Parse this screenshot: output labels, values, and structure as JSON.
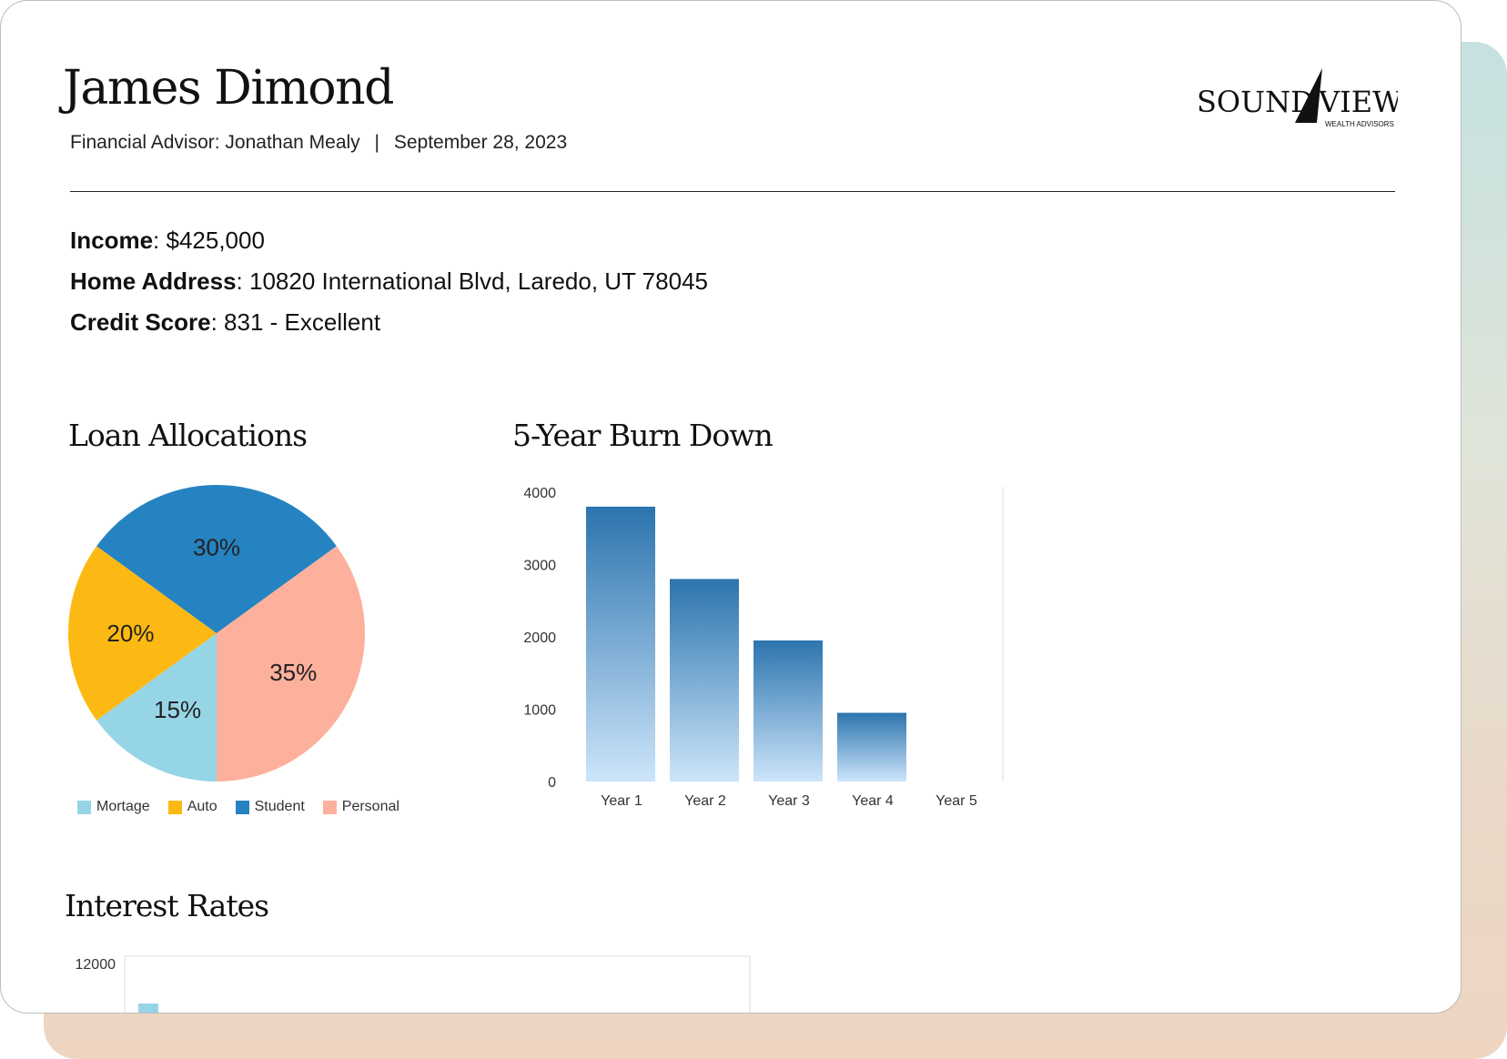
{
  "header": {
    "name": "James Dimond",
    "advisor_label": "Financial Advisor:",
    "advisor_name": "Jonathan Mealy",
    "separator": "|",
    "date": "September 28, 2023"
  },
  "logo": {
    "brand_left": "SOUND",
    "brand_right": "VIEW",
    "tagline": "WEALTH ADVISORS"
  },
  "info": {
    "income_label": "Income",
    "income_value": ": $425,000",
    "address_label": "Home Address",
    "address_value": ": 10820 International Blvd, Laredo, UT 78045",
    "credit_label": "Credit Score",
    "credit_value": ": 831 - Excellent"
  },
  "sections": {
    "loan_title": "Loan Allocations",
    "burn_title": "5-Year Burn Down",
    "rates_title": "Interest Rates"
  },
  "colors": {
    "mortgage": "#96d5e6",
    "auto": "#fdb913",
    "student": "#2683c1",
    "personal": "#fdb09c",
    "bar_top": "#2c74ae",
    "bar_bottom": "#cde5fa",
    "backdrop_top": "#c5e1e0",
    "backdrop_bottom": "#edd5c2"
  },
  "chart_data": [
    {
      "type": "pie",
      "title": "Loan Allocations",
      "categories": [
        "Mortage",
        "Auto",
        "Student",
        "Personal"
      ],
      "values": [
        15,
        20,
        30,
        35
      ],
      "labels": [
        "15%",
        "20%",
        "30%",
        "35%"
      ],
      "legend": "bottom"
    },
    {
      "type": "bar",
      "title": "5-Year Burn Down",
      "categories": [
        "Year 1",
        "Year 2",
        "Year 3",
        "Year 4",
        "Year 5"
      ],
      "values": [
        3800,
        2800,
        1950,
        950,
        0
      ],
      "ylim": [
        0,
        4000
      ],
      "yticks": [
        "0",
        "1000",
        "2000",
        "3000",
        "4000"
      ],
      "grid": false
    },
    {
      "type": "bar",
      "title": "Interest Rates",
      "ylim_top": 12000,
      "yticks": [
        "12000"
      ],
      "partially_visible": true
    }
  ]
}
